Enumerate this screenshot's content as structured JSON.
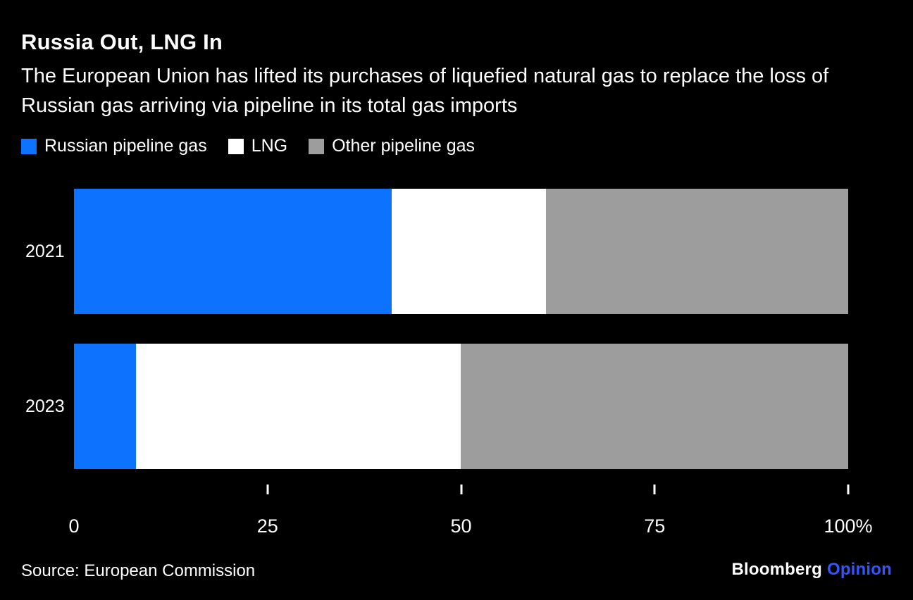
{
  "header": {
    "title": "Russia Out, LNG In",
    "subtitle": "The European Union has lifted its purchases of liquefied natural gas to replace the loss of Russian gas arriving via pipeline in its total gas imports"
  },
  "colors": {
    "background": "#000000",
    "text": "#ffffff",
    "russian_pipeline": "#0d73ff",
    "lng": "#ffffff",
    "other_pipeline": "#9d9d9d",
    "opinion_blue": "#3355ff"
  },
  "chart_data": {
    "type": "bar",
    "orientation": "horizontal",
    "stacked": true,
    "title": "Russia Out, LNG In",
    "subtitle": "The European Union has lifted its purchases of liquefied natural gas to replace the loss of Russian gas arriving via pipeline in its total gas imports",
    "categories": [
      "2021",
      "2023"
    ],
    "series": [
      {
        "name": "Russian pipeline gas",
        "color": "#0d73ff",
        "values": [
          41,
          8
        ]
      },
      {
        "name": "LNG",
        "color": "#ffffff",
        "values": [
          20,
          42
        ]
      },
      {
        "name": "Other pipeline gas",
        "color": "#9d9d9d",
        "values": [
          39,
          50
        ]
      }
    ],
    "unit": "%",
    "xlim": [
      0,
      100
    ],
    "x_ticks": [
      {
        "value": 0,
        "label": "0",
        "mark": false
      },
      {
        "value": 25,
        "label": "25",
        "mark": true
      },
      {
        "value": 50,
        "label": "50",
        "mark": true
      },
      {
        "value": 75,
        "label": "75",
        "mark": true
      },
      {
        "value": 100,
        "label": "100%",
        "mark": true
      }
    ],
    "grid": false,
    "legend_position": "top"
  },
  "footer": {
    "source": "Source: European Commission",
    "logo_bloomberg": "Bloomberg",
    "logo_opinion": "Opinion"
  }
}
